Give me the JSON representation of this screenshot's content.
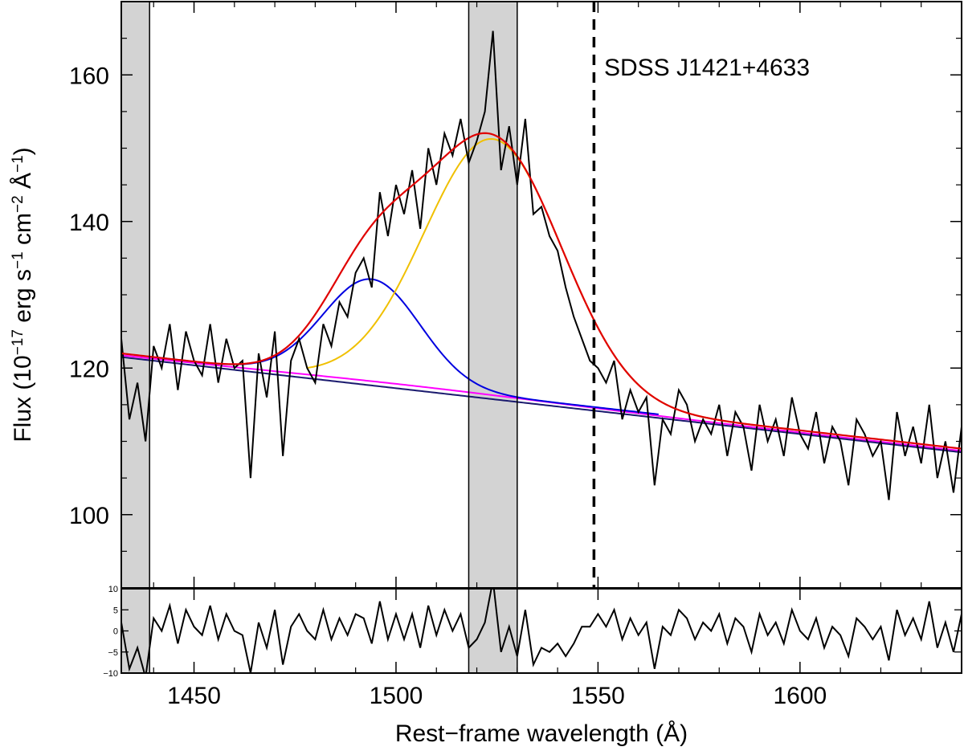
{
  "chart_data": {
    "type": "line",
    "annotation": "SDSS J1421+4633",
    "xlabel": "Rest−frame wavelength (Å)",
    "ylabel": {
      "prefix": "Flux (10",
      "exp1": "−17",
      "mid1": " erg s",
      "exp2": "−1",
      "mid2": " cm",
      "exp3": "−2",
      "mid3": " Å",
      "exp4": "−1",
      "suffix": ")"
    },
    "xlim": [
      1432,
      1640
    ],
    "ylim": [
      90,
      170
    ],
    "residual_ylim": [
      -10,
      10
    ],
    "x_ticks": [
      1450,
      1500,
      1550,
      1600
    ],
    "x_tick_labels": [
      "1450",
      "1500",
      "1550",
      "1600"
    ],
    "y_ticks": [
      100,
      120,
      140,
      160
    ],
    "y_tick_labels": [
      "100",
      "120",
      "140",
      "160"
    ],
    "residual_ticks": [
      10,
      5,
      0,
      -5,
      -10
    ],
    "residual_tick_labels": [
      "10",
      "5",
      "0",
      "−5",
      "−10"
    ],
    "masked_regions": [
      [
        1432,
        1439
      ],
      [
        1518,
        1530
      ]
    ],
    "reference_line": {
      "x": 1549,
      "style": "dashed"
    },
    "continuum": {
      "x": [
        1432,
        1640
      ],
      "y": [
        122.0,
        109.0
      ]
    },
    "colors": {
      "spectrum": "#000000",
      "total_fit": "#e00000",
      "gaussian_blue": "#0000e0",
      "gaussian_gold": "#f0c000",
      "continuum_magenta": "#ff00ff",
      "continuum_navy": "#1a1a6e",
      "mask_fill": "#d3d3d3"
    },
    "series": [
      {
        "kind": "observed_spectrum",
        "x": [
          1432,
          1434,
          1436,
          1438,
          1440,
          1442,
          1444,
          1446,
          1448,
          1450,
          1452,
          1454,
          1456,
          1458,
          1460,
          1462,
          1464,
          1466,
          1468,
          1470,
          1472,
          1474,
          1476,
          1478,
          1480,
          1482,
          1484,
          1486,
          1488,
          1490,
          1492,
          1494,
          1496,
          1498,
          1500,
          1502,
          1504,
          1506,
          1508,
          1510,
          1512,
          1514,
          1516,
          1518,
          1520,
          1522,
          1524,
          1526,
          1528,
          1530,
          1532,
          1534,
          1536,
          1538,
          1540,
          1542,
          1544,
          1546,
          1548,
          1550,
          1552,
          1554,
          1556,
          1558,
          1560,
          1562,
          1564,
          1566,
          1568,
          1570,
          1572,
          1574,
          1576,
          1578,
          1580,
          1582,
          1584,
          1586,
          1588,
          1590,
          1592,
          1594,
          1596,
          1598,
          1600,
          1602,
          1604,
          1606,
          1608,
          1610,
          1612,
          1614,
          1616,
          1618,
          1620,
          1622,
          1624,
          1626,
          1628,
          1630,
          1632,
          1634,
          1636,
          1638,
          1640
        ],
        "y": [
          124,
          113,
          118,
          110,
          123,
          120,
          126,
          117,
          125,
          121,
          119,
          126,
          118,
          124,
          120,
          121,
          105,
          122,
          116,
          125,
          108,
          121,
          124,
          120,
          118,
          126,
          123,
          129,
          127,
          133,
          135,
          131,
          144,
          138,
          145,
          141,
          147,
          139,
          150,
          145,
          152,
          149,
          154,
          148,
          151,
          155,
          166,
          147,
          153,
          145,
          154,
          141,
          142,
          138,
          136,
          131,
          127,
          124,
          121,
          120,
          118,
          121,
          113,
          117,
          114,
          116,
          104,
          113,
          111,
          117,
          115,
          110,
          113,
          111,
          115,
          108,
          114,
          112,
          106,
          115,
          110,
          113,
          108,
          116,
          111,
          109,
          114,
          107,
          112,
          110,
          104,
          113,
          111,
          108,
          110,
          102,
          114,
          108,
          112,
          107,
          115,
          105,
          110,
          103,
          112
        ]
      },
      {
        "kind": "total_fit"
      },
      {
        "kind": "gaussian_blue",
        "center": 1494,
        "amplitude": 14.0,
        "sigma": 12
      },
      {
        "kind": "gaussian_gold",
        "center": 1524,
        "amplitude": 35.0,
        "sigma": 17
      },
      {
        "kind": "continuum_magenta"
      },
      {
        "kind": "continuum_navy"
      }
    ],
    "residuals": {
      "x": [
        1432,
        1434,
        1436,
        1438,
        1440,
        1442,
        1444,
        1446,
        1448,
        1450,
        1452,
        1454,
        1456,
        1458,
        1460,
        1462,
        1464,
        1466,
        1468,
        1470,
        1472,
        1474,
        1476,
        1478,
        1480,
        1482,
        1484,
        1486,
        1488,
        1490,
        1492,
        1494,
        1496,
        1498,
        1500,
        1502,
        1504,
        1506,
        1508,
        1510,
        1512,
        1514,
        1516,
        1518,
        1520,
        1522,
        1524,
        1526,
        1528,
        1530,
        1532,
        1534,
        1536,
        1538,
        1540,
        1542,
        1544,
        1546,
        1548,
        1550,
        1552,
        1554,
        1556,
        1558,
        1560,
        1562,
        1564,
        1566,
        1568,
        1570,
        1572,
        1574,
        1576,
        1578,
        1580,
        1582,
        1584,
        1586,
        1588,
        1590,
        1592,
        1594,
        1596,
        1598,
        1600,
        1602,
        1604,
        1606,
        1608,
        1610,
        1612,
        1614,
        1616,
        1618,
        1620,
        1622,
        1624,
        1626,
        1628,
        1630,
        1632,
        1634,
        1636,
        1638,
        1640
      ],
      "y": [
        2,
        -9,
        -4,
        -11,
        3,
        0,
        6,
        -3,
        5,
        1,
        -1,
        6,
        -2,
        4,
        0,
        -1,
        -10,
        2,
        -4,
        5,
        -8,
        1,
        4,
        0,
        -2,
        5,
        -2,
        3,
        -1,
        4,
        3,
        -3,
        7,
        -2,
        4,
        -2,
        4,
        -4,
        6,
        -1,
        5,
        0,
        4,
        -4,
        -2,
        2,
        12,
        -5,
        1,
        -6,
        5,
        -8,
        -4,
        -5,
        -3,
        -6,
        -3,
        1,
        1,
        4,
        1,
        5,
        -2,
        3,
        -1,
        2,
        -9,
        1,
        -1,
        5,
        3,
        -2,
        2,
        0,
        4,
        -3,
        3,
        1,
        -5,
        4,
        -1,
        2,
        -3,
        5,
        0,
        -2,
        3,
        -4,
        1,
        -1,
        -6,
        3,
        1,
        -2,
        1,
        -7,
        5,
        -1,
        3,
        -2,
        7,
        -4,
        2,
        -5,
        4
      ]
    }
  }
}
